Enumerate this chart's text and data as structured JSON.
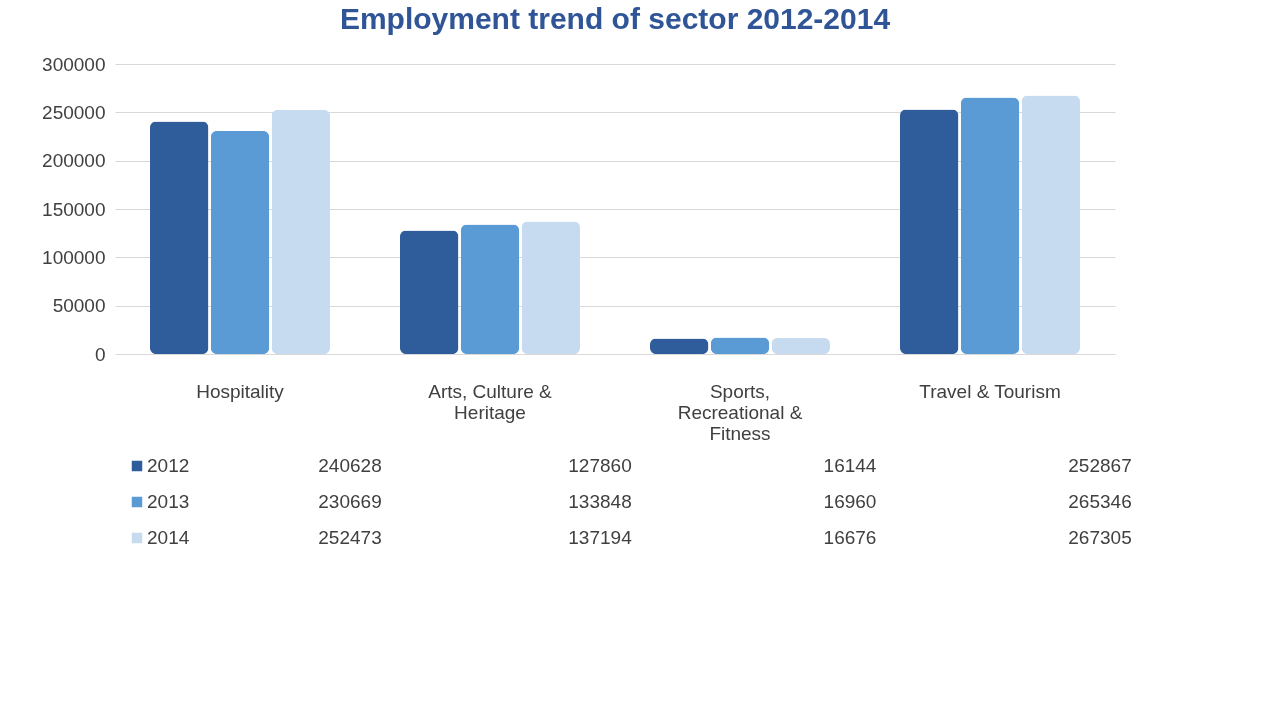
{
  "chart_data": {
    "type": "bar",
    "title": "Employment trend of sector 2012-2014",
    "categories": [
      "Hospitality",
      "Arts, Culture & Heritage",
      "Sports, Recreational & Fitness",
      "Travel & Tourism"
    ],
    "series": [
      {
        "name": "2012",
        "color": "#2f5d9b",
        "values": [
          240628,
          127860,
          16144,
          252867
        ]
      },
      {
        "name": "2013",
        "color": "#5b9bd5",
        "values": [
          230669,
          133848,
          16960,
          265346
        ]
      },
      {
        "name": "2014",
        "color": "#c6dbef",
        "values": [
          252473,
          137194,
          16676,
          267305
        ]
      }
    ],
    "ylim": [
      0,
      300000
    ],
    "yticks": [
      0,
      50000,
      100000,
      150000,
      200000,
      250000,
      300000
    ],
    "grid": "y",
    "legend": "bottom",
    "data_labels": true
  }
}
